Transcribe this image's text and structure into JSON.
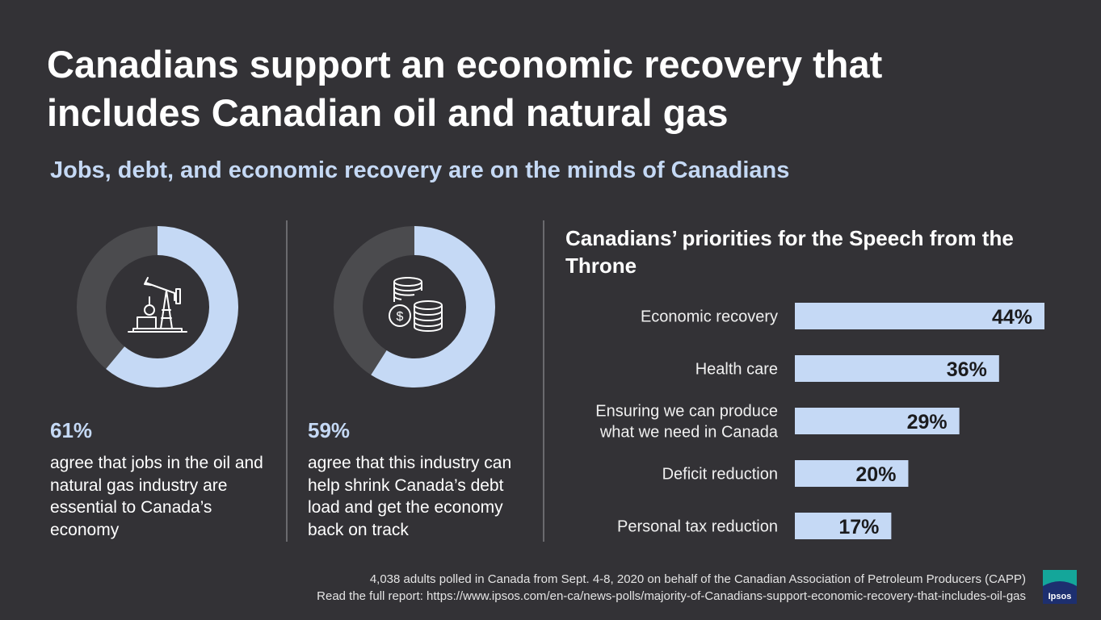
{
  "title_line1": "Canadians support an economic recovery that",
  "title_line2": "includes Canadian oil and natural gas",
  "subtitle": "Jobs, debt, and economic recovery are on the minds of Canadians",
  "stats": [
    {
      "percent": "61%",
      "value": 61,
      "description": "agree that jobs in the oil and natural gas industry are essential to Canada’s economy",
      "icon": "oil-pump-icon"
    },
    {
      "percent": "59%",
      "value": 59,
      "description": "agree that this industry can help shrink Canada’s debt load and get the economy back on track",
      "icon": "coins-icon"
    }
  ],
  "colors": {
    "background": "#333236",
    "accent": "#c5d9f5",
    "ring_remainder": "#4b4b4e"
  },
  "chart_data": {
    "type": "bar",
    "title": "Canadians’ priorities for the Speech from the Throne",
    "categories": [
      [
        "Economic recovery"
      ],
      [
        "Health care"
      ],
      [
        "Ensuring we can produce",
        "what we need in Canada"
      ],
      [
        "Deficit reduction"
      ],
      [
        "Personal tax reduction"
      ]
    ],
    "values": [
      44,
      36,
      29,
      20,
      17
    ],
    "value_labels": [
      "44%",
      "36%",
      "29%",
      "20%",
      "17%"
    ],
    "xlim": [
      0,
      44
    ]
  },
  "footer": {
    "line1": "4,038 adults polled in Canada from Sept. 4-8, 2020 on behalf of the Canadian Association of Petroleum Producers (CAPP)",
    "line2": "Read the full report: https://www.ipsos.com/en-ca/news-polls/majority-of-Canadians-support-economic-recovery-that-includes-oil-gas"
  },
  "logo_text": "Ipsos"
}
